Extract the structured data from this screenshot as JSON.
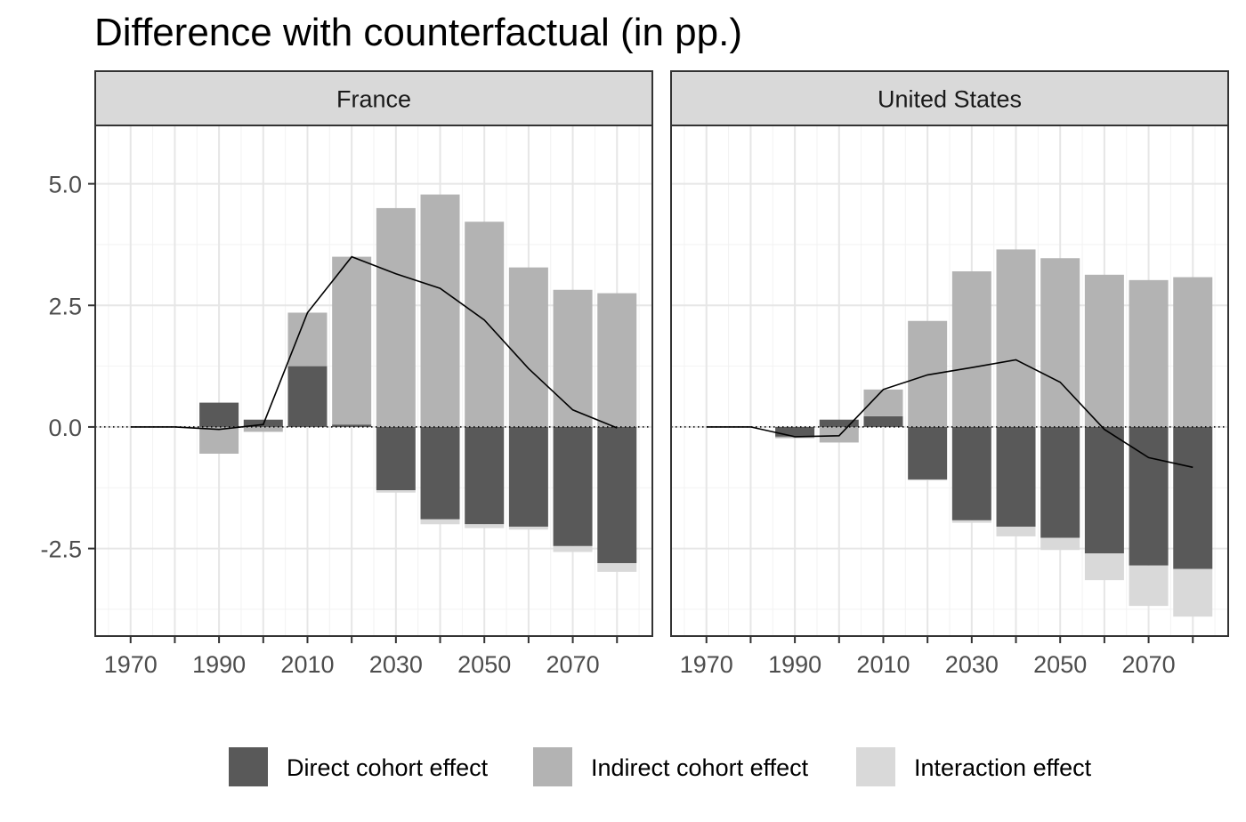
{
  "title": "Difference with counterfactual (in pp.)",
  "chart_data": {
    "type": "bar",
    "title": "Difference with counterfactual (in pp.)",
    "xlabel": "",
    "ylabel": "",
    "ylim": [
      -4.3,
      6.2
    ],
    "xlim": [
      1962,
      2088
    ],
    "y_ticks": [
      "5.0",
      "2.5",
      "0.0",
      "-2.5"
    ],
    "y_tick_values": [
      5.0,
      2.5,
      0.0,
      -2.5
    ],
    "x_ticks": [
      "1970",
      "1990",
      "2010",
      "2030",
      "2050",
      "2070"
    ],
    "x_tick_values": [
      1970,
      1990,
      2010,
      2030,
      2050,
      2070
    ],
    "grid": true,
    "legend_position": "bottom",
    "zero_line_style": "dotted",
    "colors": {
      "direct": "#595959",
      "indirect": "#b3b3b3",
      "interaction": "#d9d9d9",
      "total_line": "#000000"
    },
    "legend": [
      {
        "key": "direct",
        "label": "Direct cohort effect"
      },
      {
        "key": "indirect",
        "label": "Indirect cohort effect"
      },
      {
        "key": "interaction",
        "label": "Interaction effect"
      }
    ],
    "panels": [
      {
        "name": "France",
        "x": [
          1970,
          1980,
          1990,
          2000,
          2010,
          2020,
          2030,
          2040,
          2050,
          2060,
          2070,
          2080
        ],
        "series": [
          {
            "key": "direct",
            "name": "Direct cohort effect",
            "values": [
              0,
              0,
              0.5,
              0.15,
              1.25,
              0.05,
              -1.3,
              -1.9,
              -2.0,
              -2.05,
              -2.45,
              -2.8
            ]
          },
          {
            "key": "indirect",
            "name": "Indirect cohort effect",
            "values": [
              0,
              0,
              -0.55,
              -0.1,
              1.1,
              3.45,
              4.5,
              4.78,
              4.22,
              3.28,
              2.82,
              2.75
            ]
          },
          {
            "key": "interaction",
            "name": "Interaction effect",
            "values": [
              0,
              0,
              0,
              0,
              0,
              0,
              -0.05,
              -0.1,
              -0.08,
              -0.06,
              -0.12,
              -0.18
            ]
          }
        ],
        "total": [
          0,
          0,
          -0.05,
          0.05,
          2.35,
          3.5,
          3.15,
          2.85,
          2.2,
          1.2,
          0.35,
          -0.02
        ]
      },
      {
        "name": "United States",
        "x": [
          1970,
          1980,
          1990,
          2000,
          2010,
          2020,
          2030,
          2040,
          2050,
          2060,
          2070,
          2080
        ],
        "series": [
          {
            "key": "direct",
            "name": "Direct cohort effect",
            "values": [
              0,
              0,
              -0.2,
              0.15,
              0.22,
              -1.08,
              -1.92,
              -2.05,
              -2.28,
              -2.6,
              -2.85,
              -2.92
            ]
          },
          {
            "key": "indirect",
            "name": "Indirect cohort effect",
            "values": [
              0,
              0,
              -0.03,
              -0.32,
              0.55,
              2.18,
              3.2,
              3.65,
              3.47,
              3.13,
              3.02,
              3.08
            ]
          },
          {
            "key": "interaction",
            "name": "Interaction effect",
            "values": [
              0,
              0,
              0,
              0,
              0,
              -0.02,
              -0.05,
              -0.2,
              -0.25,
              -0.55,
              -0.83,
              -0.98
            ]
          }
        ],
        "total": [
          0,
          0,
          -0.2,
          -0.18,
          0.77,
          1.07,
          1.22,
          1.38,
          0.92,
          -0.05,
          -0.63,
          -0.83
        ]
      }
    ]
  }
}
